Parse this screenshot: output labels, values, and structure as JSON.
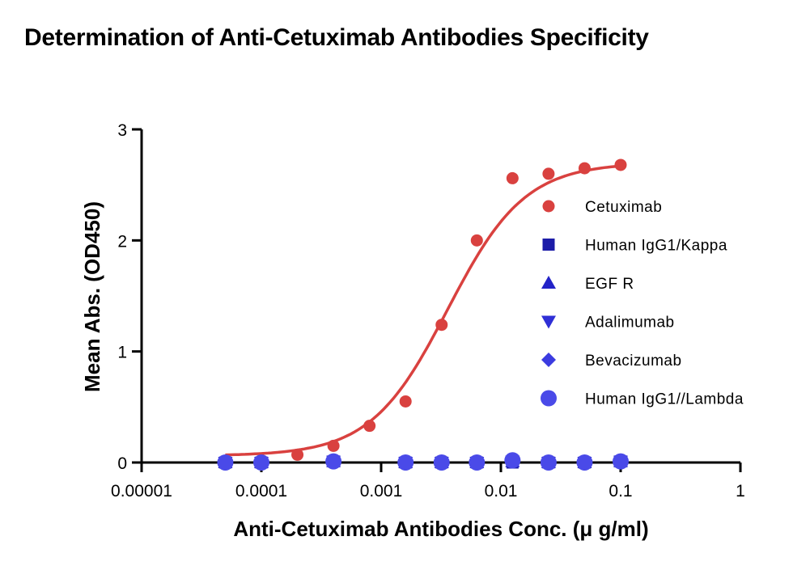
{
  "chart_data": {
    "type": "scatter",
    "title": "Determination of Anti-Cetuximab Antibodies Specificity",
    "xlabel": "Anti-Cetuximab Antibodies Conc. (μ g/ml)",
    "ylabel": "Mean Abs. (OD450)",
    "xscale": "log",
    "xlim": [
      1e-05,
      1
    ],
    "ylim": [
      0,
      3
    ],
    "x_ticks": [
      {
        "value": 1e-05,
        "label": "0.00001"
      },
      {
        "value": 0.0001,
        "label": "0.0001"
      },
      {
        "value": 0.001,
        "label": "0.001"
      },
      {
        "value": 0.01,
        "label": "0.01"
      },
      {
        "value": 0.1,
        "label": "0.1"
      },
      {
        "value": 1,
        "label": "1"
      }
    ],
    "y_ticks": [
      {
        "value": 0,
        "label": "0"
      },
      {
        "value": 1,
        "label": "1"
      },
      {
        "value": 2,
        "label": "2"
      },
      {
        "value": 3,
        "label": "3"
      }
    ],
    "legend_position": "right",
    "grid": false,
    "series": [
      {
        "name": "Cetuximab",
        "marker": "circle",
        "color": "#d9413f",
        "fit": "sigmoidal",
        "x": [
          0.0002,
          0.0004,
          0.0008,
          0.0016,
          0.0032,
          0.0063,
          0.0125,
          0.025,
          0.05,
          0.1
        ],
        "y": [
          0.07,
          0.15,
          0.33,
          0.55,
          1.24,
          2.0,
          2.56,
          2.6,
          2.65,
          2.68
        ]
      },
      {
        "name": "Human IgG1/Kappa",
        "marker": "square",
        "color": "#1c1ca8",
        "x": [
          5e-05,
          0.0001,
          0.0004,
          0.0016,
          0.0032,
          0.0063,
          0.0125,
          0.025,
          0.05,
          0.1
        ],
        "y": [
          0.0,
          0.0,
          0.01,
          0.0,
          0.0,
          0.0,
          0.0,
          0.0,
          0.0,
          0.01
        ]
      },
      {
        "name": "EGF R",
        "marker": "triangle-up",
        "color": "#2323c8",
        "x": [
          5e-05,
          0.0001,
          0.0004,
          0.0016,
          0.0032,
          0.0063,
          0.0125,
          0.025,
          0.05,
          0.1
        ],
        "y": [
          0.0,
          0.0,
          0.01,
          0.0,
          0.0,
          0.0,
          0.01,
          0.0,
          0.0,
          0.01
        ]
      },
      {
        "name": "Adalimumab",
        "marker": "triangle-down",
        "color": "#2f2fd6",
        "x": [
          5e-05,
          0.0001,
          0.0004,
          0.0016,
          0.0032,
          0.0063,
          0.0125,
          0.025,
          0.05,
          0.1
        ],
        "y": [
          0.0,
          0.0,
          0.01,
          0.0,
          0.0,
          0.0,
          0.01,
          0.0,
          0.0,
          0.01
        ]
      },
      {
        "name": "Bevacizumab",
        "marker": "diamond",
        "color": "#3b3be0",
        "x": [
          5e-05,
          0.0001,
          0.0004,
          0.0016,
          0.0032,
          0.0063,
          0.0125,
          0.025,
          0.05,
          0.1
        ],
        "y": [
          0.0,
          0.0,
          0.01,
          0.0,
          0.0,
          0.0,
          0.01,
          0.0,
          0.0,
          0.01
        ]
      },
      {
        "name": "Human IgG1//Lambda",
        "marker": "circle-large",
        "color": "#4a4ae8",
        "x": [
          5e-05,
          0.0001,
          0.0004,
          0.0016,
          0.0032,
          0.0063,
          0.0125,
          0.025,
          0.05,
          0.1
        ],
        "y": [
          0.0,
          0.0,
          0.01,
          0.0,
          0.0,
          0.0,
          0.02,
          0.0,
          0.0,
          0.01
        ]
      }
    ]
  }
}
